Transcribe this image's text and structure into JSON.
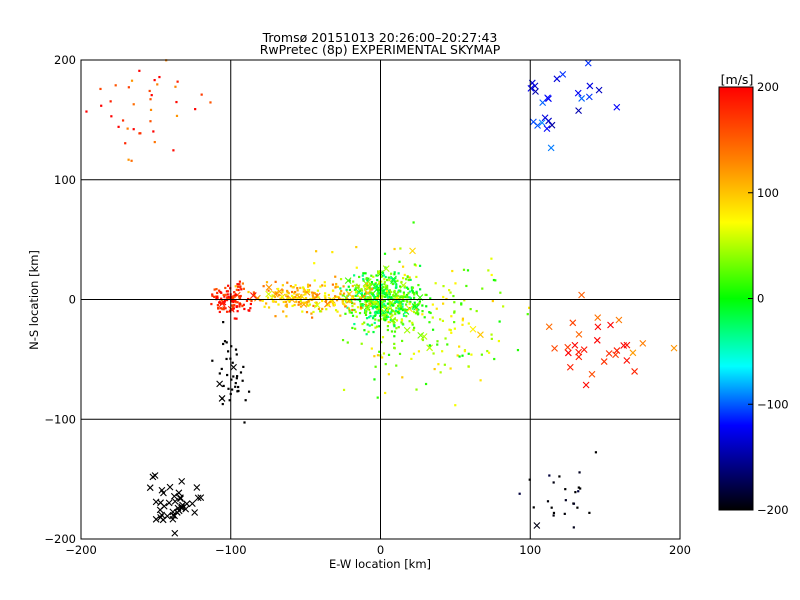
{
  "chart_data": [
    {
      "type": "scatter",
      "title": "Tromsø 20151013 20:26:00–20:27:43",
      "subtitle": "RwPretec (8p) EXPERIMENTAL SKYMAP",
      "xlabel": "E-W location [km]",
      "ylabel": "N-S location [km]",
      "xlim": [
        -200,
        200
      ],
      "ylim": [
        -200,
        200
      ],
      "xticks": [
        -200,
        -100,
        0,
        100,
        200
      ],
      "yticks": [
        -200,
        -100,
        0,
        100,
        200
      ],
      "x_tick_labels": [
        "−200",
        "−100",
        "0",
        "100",
        "200"
      ],
      "y_tick_labels": [
        "−200",
        "−100",
        "0",
        "100",
        "200"
      ],
      "grid": true,
      "marker_legend": "x = echo with large velocity, dot = echo",
      "clusters": [
        {
          "center": [
            3,
            0
          ],
          "spread": [
            18,
            15
          ],
          "count": 520,
          "velocity_range": [
            -40,
            60
          ],
          "marker": "dot"
        },
        {
          "center": [
            -45,
            2
          ],
          "spread": [
            28,
            9
          ],
          "count": 230,
          "velocity_range": [
            60,
            140
          ],
          "marker": "dot"
        },
        {
          "center": [
            -100,
            0
          ],
          "spread": [
            10,
            9
          ],
          "count": 120,
          "velocity_range": [
            150,
            220
          ],
          "marker": "dot"
        },
        {
          "center": [
            -100,
            -65
          ],
          "spread": [
            8,
            22
          ],
          "count": 40,
          "velocity_range": [
            -220,
            -200
          ],
          "marker": "dot"
        },
        {
          "center": [
            -140,
            -170
          ],
          "spread": [
            12,
            18
          ],
          "count": 40,
          "velocity_range": [
            -220,
            -200
          ],
          "marker": "x"
        },
        {
          "center": [
            30,
            -20
          ],
          "spread": [
            40,
            40
          ],
          "count": 180,
          "velocity_range": [
            0,
            100
          ],
          "marker": "dot"
        },
        {
          "center": [
            120,
            160
          ],
          "spread": [
            30,
            25
          ],
          "count": 25,
          "velocity_range": [
            -150,
            -90
          ],
          "marker": "x"
        },
        {
          "center": [
            -160,
            160
          ],
          "spread": [
            30,
            30
          ],
          "count": 40,
          "velocity_range": [
            120,
            220
          ],
          "marker": "dot"
        },
        {
          "center": [
            150,
            -35
          ],
          "spread": [
            25,
            25
          ],
          "count": 30,
          "velocity_range": [
            110,
            220
          ],
          "marker": "x"
        },
        {
          "center": [
            120,
            -160
          ],
          "spread": [
            20,
            25
          ],
          "count": 25,
          "velocity_range": [
            -220,
            -180
          ],
          "marker": "dot"
        }
      ]
    },
    {
      "type": "colorbar",
      "label": "[m/s]",
      "range": [
        -200,
        200
      ],
      "ticks": [
        200,
        100,
        0,
        -100,
        -200
      ],
      "tick_labels": [
        "200",
        "100",
        "0",
        "−100",
        "−200"
      ],
      "colors_top_to_bottom": [
        "#ff0000",
        "#ff8000",
        "#ffff00",
        "#00ff00",
        "#00ffff",
        "#0000ff",
        "#000000"
      ]
    }
  ]
}
